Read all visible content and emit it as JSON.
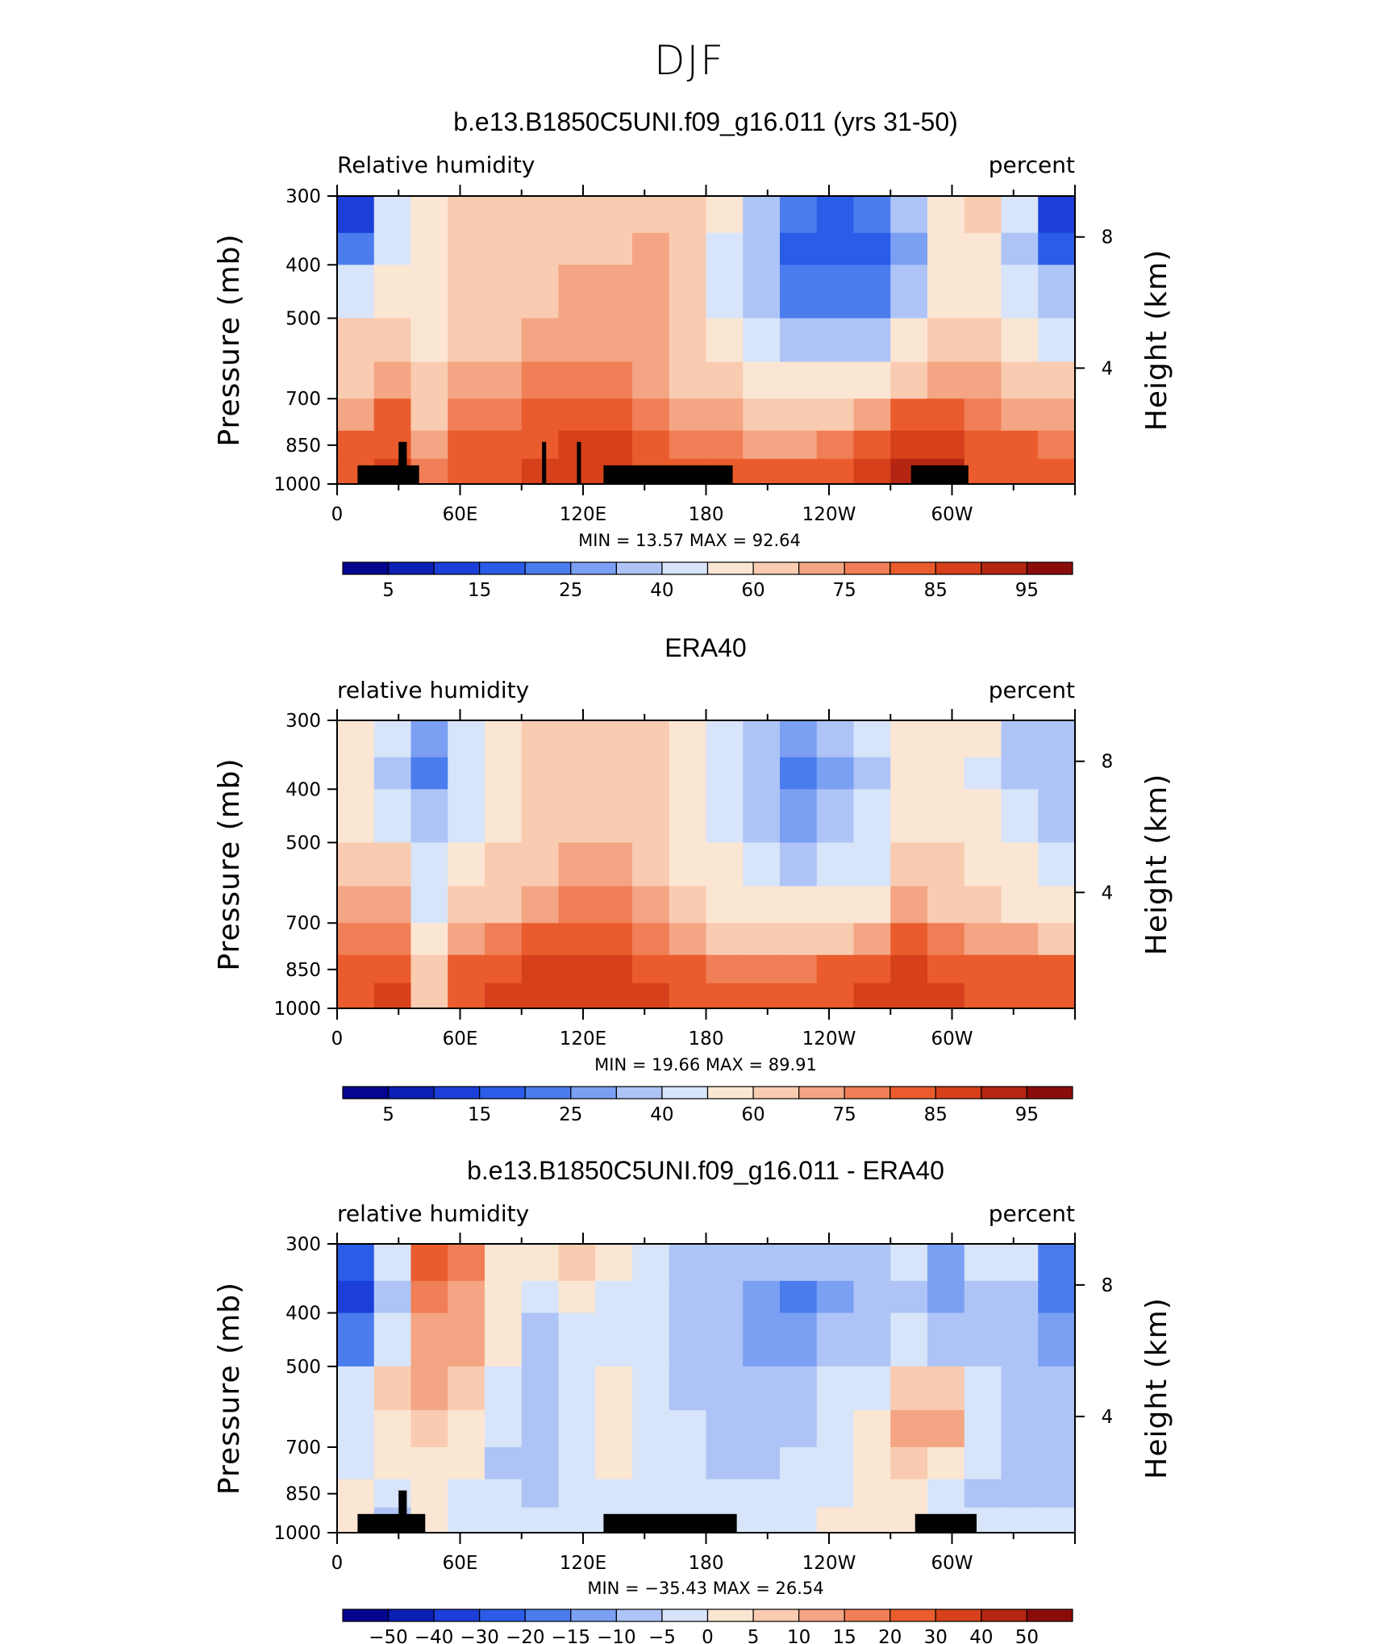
{
  "figure": {
    "title": "DJF"
  },
  "colors": {
    "rh_palette": [
      "#05068f",
      "#0b1fb5",
      "#1b3fd8",
      "#2a5ce8",
      "#4a7cee",
      "#7b9ff2",
      "#aec4f6",
      "#d7e4f9",
      "#fbe6d4",
      "#f9cbb0",
      "#f4a583",
      "#f07e56",
      "#ea5c2d",
      "#d6401b",
      "#b42612",
      "#8b0d0b"
    ],
    "diff_palette": [
      "#05068f",
      "#0b1fb5",
      "#1b3fd8",
      "#2a5ce8",
      "#4a7cee",
      "#7b9ff2",
      "#aec4f6",
      "#d7e4f9",
      "#fbe6d4",
      "#f9cbb0",
      "#f4a583",
      "#f07e56",
      "#ea5c2d",
      "#d6401b",
      "#b42612",
      "#8b0d0b"
    ],
    "land": "#000000"
  },
  "chart_data": [
    {
      "type": "heatmap",
      "title": "b.e13.B1850C5UNI.f09_g16.011 (yrs 31-50)",
      "left_label": "Relative humidity",
      "right_label": "percent",
      "ylabel": "Pressure (mb)",
      "ylabel_right": "Height (km)",
      "x_ticks": [
        "0",
        "60E",
        "120E",
        "180",
        "120W",
        "60W"
      ],
      "y_ticks": [
        "300",
        "400",
        "500",
        "700",
        "850",
        "1000"
      ],
      "y_ticks_right": [
        "8",
        "4"
      ],
      "ylim": [
        1000,
        300
      ],
      "stats": "MIN =   13.57   MAX =   92.64",
      "min": 13.57,
      "max": 92.64,
      "colorbar_labels": [
        "5",
        "15",
        "25",
        "40",
        "60",
        "75",
        "85",
        "95"
      ],
      "land_blocks_lon": [
        [
          10,
          40
        ],
        [
          30,
          34
        ],
        [
          100,
          102
        ],
        [
          117,
          119
        ],
        [
          130,
          193
        ],
        [
          280,
          308
        ]
      ],
      "field": [
        [
          14,
          40,
          55,
          60,
          62,
          64,
          65,
          66,
          68,
          66,
          50,
          35,
          22,
          18,
          20,
          30,
          55,
          60,
          40,
          14
        ],
        [
          22,
          42,
          55,
          60,
          62,
          66,
          67,
          68,
          70,
          66,
          48,
          32,
          18,
          15,
          18,
          28,
          50,
          56,
          36,
          18
        ],
        [
          45,
          55,
          58,
          62,
          64,
          68,
          70,
          70,
          70,
          64,
          48,
          35,
          24,
          20,
          24,
          35,
          55,
          58,
          42,
          30
        ],
        [
          60,
          62,
          55,
          66,
          68,
          72,
          74,
          74,
          72,
          66,
          52,
          42,
          34,
          32,
          38,
          50,
          62,
          62,
          52,
          48
        ],
        [
          68,
          74,
          62,
          70,
          72,
          76,
          78,
          78,
          74,
          68,
          60,
          54,
          50,
          50,
          55,
          65,
          72,
          70,
          64,
          62
        ],
        [
          74,
          80,
          66,
          76,
          78,
          82,
          84,
          82,
          78,
          74,
          70,
          68,
          66,
          68,
          72,
          80,
          84,
          78,
          74,
          72
        ],
        [
          80,
          84,
          72,
          80,
          82,
          84,
          86,
          86,
          82,
          78,
          76,
          74,
          74,
          76,
          80,
          86,
          88,
          82,
          80,
          78
        ],
        [
          82,
          86,
          78,
          82,
          84,
          86,
          86,
          86,
          84,
          82,
          80,
          80,
          82,
          84,
          86,
          90,
          90,
          84,
          82,
          80
        ]
      ]
    },
    {
      "type": "heatmap",
      "title": "ERA40",
      "left_label": "relative humidity",
      "right_label": "percent",
      "ylabel": "Pressure (mb)",
      "ylabel_right": "Height (km)",
      "x_ticks": [
        "0",
        "60E",
        "120E",
        "180",
        "120W",
        "60W"
      ],
      "y_ticks": [
        "300",
        "400",
        "500",
        "700",
        "850",
        "1000"
      ],
      "y_ticks_right": [
        "8",
        "4"
      ],
      "ylim": [
        1000,
        300
      ],
      "stats": "MIN =   19.66   MAX =   89.91",
      "min": 19.66,
      "max": 89.91,
      "colorbar_labels": [
        "5",
        "15",
        "25",
        "40",
        "60",
        "75",
        "85",
        "95"
      ],
      "land_blocks_lon": [],
      "field": [
        [
          58,
          40,
          25,
          42,
          55,
          62,
          64,
          64,
          62,
          58,
          44,
          34,
          28,
          30,
          40,
          58,
          55,
          50,
          38,
          34
        ],
        [
          56,
          38,
          22,
          40,
          54,
          62,
          66,
          66,
          64,
          56,
          42,
          30,
          24,
          26,
          36,
          56,
          54,
          48,
          36,
          32
        ],
        [
          58,
          48,
          30,
          44,
          56,
          64,
          68,
          68,
          64,
          56,
          44,
          34,
          28,
          30,
          40,
          58,
          56,
          50,
          40,
          38
        ],
        [
          64,
          62,
          40,
          54,
          62,
          68,
          72,
          72,
          66,
          58,
          50,
          42,
          38,
          40,
          48,
          64,
          60,
          56,
          50,
          48
        ],
        [
          70,
          70,
          48,
          62,
          68,
          74,
          76,
          76,
          70,
          62,
          56,
          52,
          50,
          52,
          58,
          72,
          66,
          62,
          58,
          56
        ],
        [
          76,
          78,
          56,
          72,
          76,
          80,
          80,
          80,
          76,
          70,
          66,
          64,
          64,
          66,
          70,
          82,
          76,
          72,
          70,
          68
        ],
        [
          80,
          84,
          60,
          82,
          84,
          86,
          86,
          86,
          84,
          80,
          76,
          76,
          78,
          80,
          82,
          86,
          84,
          80,
          82,
          80
        ],
        [
          82,
          86,
          62,
          84,
          86,
          88,
          88,
          88,
          86,
          84,
          80,
          80,
          82,
          84,
          86,
          88,
          88,
          82,
          84,
          82
        ]
      ]
    },
    {
      "type": "heatmap",
      "title": "b.e13.B1850C5UNI.f09_g16.011 - ERA40",
      "left_label": "relative humidity",
      "right_label": "percent",
      "ylabel": "Pressure (mb)",
      "ylabel_right": "Height (km)",
      "x_ticks": [
        "0",
        "60E",
        "120E",
        "180",
        "120W",
        "60W"
      ],
      "y_ticks": [
        "300",
        "400",
        "500",
        "700",
        "850",
        "1000"
      ],
      "y_ticks_right": [
        "8",
        "4"
      ],
      "ylim": [
        1000,
        300
      ],
      "stats": "MIN = −35.43   MAX =   26.54",
      "min": -35.43,
      "max": 26.54,
      "colorbar_labels": [
        "−50",
        "−40",
        "−30",
        "−20",
        "−15",
        "−10",
        "−5",
        "0",
        "5",
        "10",
        "15",
        "20",
        "30",
        "40",
        "50"
      ],
      "land_blocks_lon": [
        [
          10,
          43
        ],
        [
          30,
          34
        ],
        [
          130,
          195
        ],
        [
          282,
          312
        ]
      ],
      "field": [
        [
          -30,
          -5,
          20,
          18,
          4,
          2,
          6,
          2,
          -2,
          -6,
          -6,
          -8,
          -10,
          -8,
          -6,
          -2,
          -12,
          -4,
          -2,
          -20
        ],
        [
          -32,
          -8,
          16,
          14,
          2,
          -4,
          0,
          -2,
          -4,
          -8,
          -10,
          -12,
          -16,
          -12,
          -10,
          -6,
          -14,
          -8,
          -6,
          -18
        ],
        [
          -20,
          -4,
          12,
          10,
          0,
          -6,
          -2,
          -2,
          -4,
          -8,
          -10,
          -12,
          -12,
          -10,
          -8,
          -4,
          -8,
          -6,
          -8,
          -12
        ],
        [
          -4,
          6,
          10,
          6,
          -2,
          -6,
          -2,
          0,
          -2,
          -6,
          -8,
          -8,
          -6,
          -4,
          -2,
          6,
          6,
          -4,
          -6,
          -6
        ],
        [
          -2,
          4,
          6,
          2,
          -4,
          -6,
          -2,
          2,
          -2,
          -4,
          -6,
          -8,
          -6,
          -2,
          4,
          12,
          10,
          -2,
          -6,
          -8
        ],
        [
          -2,
          2,
          4,
          0,
          -6,
          -6,
          -2,
          0,
          -2,
          -4,
          -6,
          -6,
          -4,
          -2,
          2,
          8,
          4,
          -4,
          -8,
          -10
        ],
        [
          0,
          -4,
          4,
          -2,
          -4,
          -6,
          -4,
          -2,
          -2,
          -4,
          -4,
          -4,
          -4,
          -2,
          0,
          4,
          -2,
          -6,
          -6,
          -6
        ],
        [
          0,
          -6,
          2,
          -2,
          -4,
          -4,
          -2,
          -2,
          -2,
          -2,
          -4,
          -4,
          -2,
          0,
          0,
          2,
          -2,
          -4,
          -4,
          -4
        ]
      ]
    }
  ]
}
